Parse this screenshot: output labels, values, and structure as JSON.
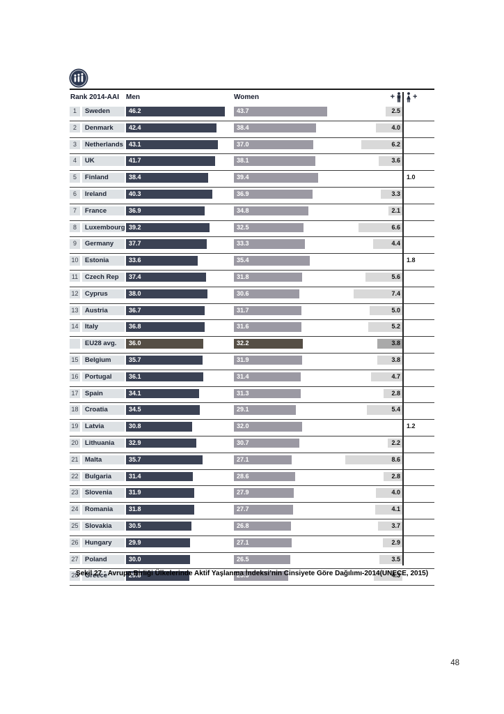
{
  "header": {
    "rank_label": "Rank 2014-AAI",
    "men_label": "Men",
    "women_label": "Women",
    "men_gap_plus": "+",
    "women_gap_plus": "+"
  },
  "rows": [
    {
      "rank": "1",
      "country": "Sweden",
      "men": "46.2",
      "women": "43.7",
      "gap": "2.5",
      "gap_side": "men",
      "avg": false
    },
    {
      "rank": "2",
      "country": "Denmark",
      "men": "42.4",
      "women": "38.4",
      "gap": "4.0",
      "gap_side": "men",
      "avg": false
    },
    {
      "rank": "3",
      "country": "Netherlands",
      "men": "43.1",
      "women": "37.0",
      "gap": "6.2",
      "gap_side": "men",
      "avg": false
    },
    {
      "rank": "4",
      "country": "UK",
      "men": "41.7",
      "women": "38.1",
      "gap": "3.6",
      "gap_side": "men",
      "avg": false
    },
    {
      "rank": "5",
      "country": "Finland",
      "men": "38.4",
      "women": "39.4",
      "gap": "1.0",
      "gap_side": "women",
      "avg": false
    },
    {
      "rank": "6",
      "country": "Ireland",
      "men": "40.3",
      "women": "36.9",
      "gap": "3.3",
      "gap_side": "men",
      "avg": false
    },
    {
      "rank": "7",
      "country": "France",
      "men": "36.9",
      "women": "34.8",
      "gap": "2.1",
      "gap_side": "men",
      "avg": false
    },
    {
      "rank": "8",
      "country": "Luxembourg",
      "men": "39.2",
      "women": "32.5",
      "gap": "6.6",
      "gap_side": "men",
      "avg": false
    },
    {
      "rank": "9",
      "country": "Germany",
      "men": "37.7",
      "women": "33.3",
      "gap": "4.4",
      "gap_side": "men",
      "avg": false
    },
    {
      "rank": "10",
      "country": "Estonia",
      "men": "33.6",
      "women": "35.4",
      "gap": "1.8",
      "gap_side": "women",
      "avg": false
    },
    {
      "rank": "11",
      "country": "Czech Rep",
      "men": "37.4",
      "women": "31.8",
      "gap": "5.6",
      "gap_side": "men",
      "avg": false
    },
    {
      "rank": "12",
      "country": "Cyprus",
      "men": "38.0",
      "women": "30.6",
      "gap": "7.4",
      "gap_side": "men",
      "avg": false
    },
    {
      "rank": "13",
      "country": "Austria",
      "men": "36.7",
      "women": "31.7",
      "gap": "5.0",
      "gap_side": "men",
      "avg": false
    },
    {
      "rank": "14",
      "country": "Italy",
      "men": "36.8",
      "women": "31.6",
      "gap": "5.2",
      "gap_side": "men",
      "avg": false
    },
    {
      "rank": "",
      "country": "EU28 avg.",
      "men": "36.0",
      "women": "32.2",
      "gap": "3.8",
      "gap_side": "men",
      "avg": true
    },
    {
      "rank": "15",
      "country": "Belgium",
      "men": "35.7",
      "women": "31.9",
      "gap": "3.8",
      "gap_side": "men",
      "avg": false
    },
    {
      "rank": "16",
      "country": "Portugal",
      "men": "36.1",
      "women": "31.4",
      "gap": "4.7",
      "gap_side": "men",
      "avg": false
    },
    {
      "rank": "17",
      "country": "Spain",
      "men": "34.1",
      "women": "31.3",
      "gap": "2.8",
      "gap_side": "men",
      "avg": false
    },
    {
      "rank": "18",
      "country": "Croatia",
      "men": "34.5",
      "women": "29.1",
      "gap": "5.4",
      "gap_side": "men",
      "avg": false
    },
    {
      "rank": "19",
      "country": "Latvia",
      "men": "30.8",
      "women": "32.0",
      "gap": "1.2",
      "gap_side": "women",
      "avg": false
    },
    {
      "rank": "20",
      "country": "Lithuania",
      "men": "32.9",
      "women": "30.7",
      "gap": "2.2",
      "gap_side": "men",
      "avg": false
    },
    {
      "rank": "21",
      "country": "Malta",
      "men": "35.7",
      "women": "27.1",
      "gap": "8.6",
      "gap_side": "men",
      "avg": false
    },
    {
      "rank": "22",
      "country": "Bulgaria",
      "men": "31.4",
      "women": "28.6",
      "gap": "2.8",
      "gap_side": "men",
      "avg": false
    },
    {
      "rank": "23",
      "country": "Slovenia",
      "men": "31.9",
      "women": "27.9",
      "gap": "4.0",
      "gap_side": "men",
      "avg": false
    },
    {
      "rank": "24",
      "country": "Romania",
      "men": "31.8",
      "women": "27.7",
      "gap": "4.1",
      "gap_side": "men",
      "avg": false
    },
    {
      "rank": "25",
      "country": "Slovakia",
      "men": "30.5",
      "women": "26.8",
      "gap": "3.7",
      "gap_side": "men",
      "avg": false
    },
    {
      "rank": "26",
      "country": "Hungary",
      "men": "29.9",
      "women": "27.1",
      "gap": "2.9",
      "gap_side": "men",
      "avg": false
    },
    {
      "rank": "27",
      "country": "Poland",
      "men": "30.0",
      "women": "26.5",
      "gap": "3.5",
      "gap_side": "men",
      "avg": false
    },
    {
      "rank": "28",
      "country": "Greece",
      "men": "29.8",
      "women": "25.5",
      "gap": "4.3",
      "gap_side": "men",
      "avg": false
    }
  ],
  "caption": "Şekil 27 : Avrupa Birliği Ülkelerinde Aktif Yaşlanma İndeksi’nin Cinsiyete Göre Dağılımı-2014(UNECE, 2015)",
  "page_number": "48",
  "colors": {
    "men_bar": "#3b4254",
    "women_bar": "#9b99a3",
    "avg_bar": "#554e45",
    "label_bg": "#dde1e4",
    "gap_bg": "#d9d9d9",
    "avg_gap_bg": "#a9a9a9"
  },
  "chart_data": {
    "type": "bar",
    "orientation": "horizontal",
    "title": "Şekil 27 : Avrupa Birliği Ülkelerinde Aktif Yaşlanma İndeksi’nin Cinsiyete Göre Dağılımı-2014(UNECE, 2015)",
    "legend": [
      "Men",
      "Women"
    ],
    "legend_position": "top",
    "grid": false,
    "x_range": [
      0,
      50
    ],
    "categories": [
      "Sweden",
      "Denmark",
      "Netherlands",
      "UK",
      "Finland",
      "Ireland",
      "France",
      "Luxembourg",
      "Germany",
      "Estonia",
      "Czech Rep",
      "Cyprus",
      "Austria",
      "Italy",
      "EU28 avg.",
      "Belgium",
      "Portugal",
      "Spain",
      "Croatia",
      "Latvia",
      "Lithuania",
      "Malta",
      "Bulgaria",
      "Slovenia",
      "Romania",
      "Slovakia",
      "Hungary",
      "Poland",
      "Greece"
    ],
    "ranks": [
      "1",
      "2",
      "3",
      "4",
      "5",
      "6",
      "7",
      "8",
      "9",
      "10",
      "11",
      "12",
      "13",
      "14",
      null,
      "15",
      "16",
      "17",
      "18",
      "19",
      "20",
      "21",
      "22",
      "23",
      "24",
      "25",
      "26",
      "27",
      "28"
    ],
    "series": [
      {
        "name": "Men",
        "values": [
          46.2,
          42.4,
          43.1,
          41.7,
          38.4,
          40.3,
          36.9,
          39.2,
          37.7,
          33.6,
          37.4,
          38.0,
          36.7,
          36.8,
          36.0,
          35.7,
          36.1,
          34.1,
          34.5,
          30.8,
          32.9,
          35.7,
          31.4,
          31.9,
          31.8,
          30.5,
          29.9,
          30.0,
          29.8
        ]
      },
      {
        "name": "Women",
        "values": [
          43.7,
          38.4,
          37.0,
          38.1,
          39.4,
          36.9,
          34.8,
          32.5,
          33.3,
          35.4,
          31.8,
          30.6,
          31.7,
          31.6,
          32.2,
          31.9,
          31.4,
          31.3,
          29.1,
          32.0,
          30.7,
          27.1,
          28.6,
          27.9,
          27.7,
          26.8,
          27.1,
          26.5,
          25.5
        ]
      },
      {
        "name": "Gender gap",
        "values": [
          2.5,
          4.0,
          6.2,
          3.6,
          1.0,
          3.3,
          2.1,
          6.6,
          4.4,
          1.8,
          5.6,
          7.4,
          5.0,
          5.2,
          3.8,
          3.8,
          4.7,
          2.8,
          5.4,
          1.2,
          2.2,
          8.6,
          2.8,
          4.0,
          4.1,
          3.7,
          2.9,
          3.5,
          4.3
        ],
        "favors": [
          "men",
          "men",
          "men",
          "men",
          "women",
          "men",
          "men",
          "men",
          "men",
          "women",
          "men",
          "men",
          "men",
          "men",
          "men",
          "men",
          "men",
          "men",
          "men",
          "women",
          "men",
          "men",
          "men",
          "men",
          "men",
          "men",
          "men",
          "men",
          "men"
        ]
      }
    ]
  }
}
